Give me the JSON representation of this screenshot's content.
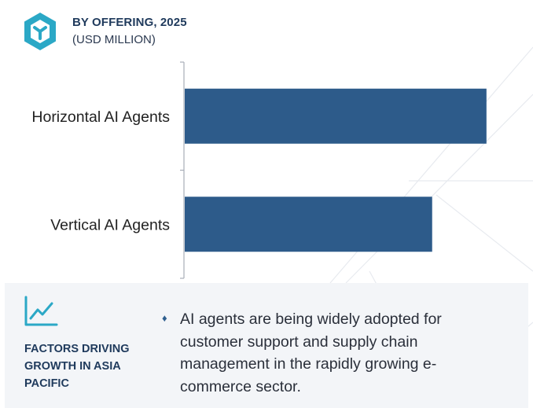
{
  "header": {
    "title": "BY OFFERING, 2025",
    "subtitle": "(USD MILLION)"
  },
  "chart_data": {
    "type": "bar",
    "orientation": "horizontal",
    "categories": [
      "Horizontal AI Agents",
      "Vertical AI Agents"
    ],
    "values": [
      100,
      82
    ],
    "xlim": [
      0,
      105
    ],
    "grid": false,
    "bar_color": "#2d5b8a"
  },
  "footer": {
    "factors_title": "FACTORS DRIVING GROWTH IN ASIA PACIFIC",
    "bullet_icon": "diamond-bullet-icon",
    "factor_text": "AI agents are being widely adopted for customer support and supply chain management in the rapidly growing e-commerce sector."
  },
  "colors": {
    "accent": "#2ba8c6",
    "brand_dark": "#1f3a5c",
    "bar": "#2d5b8a",
    "footer_bg": "#f3f5f8"
  }
}
